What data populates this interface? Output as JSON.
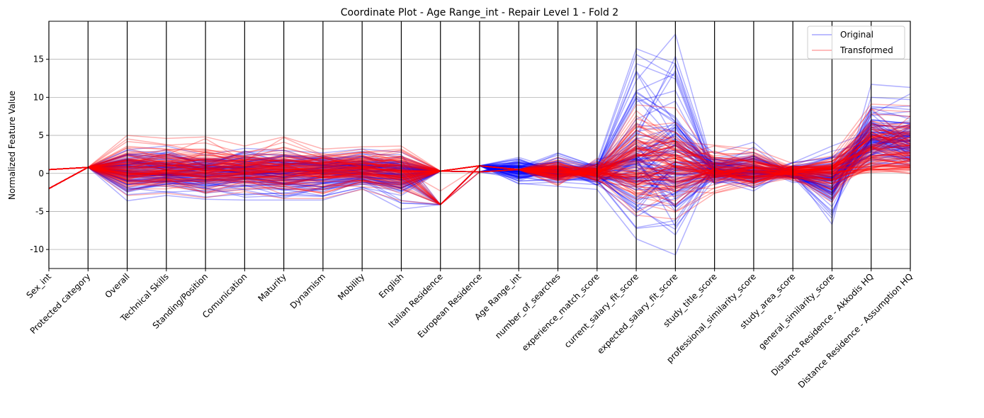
{
  "chart_data": {
    "type": "line",
    "title": "Coordinate Plot - Age Range_int - Repair Level 1 - Fold 2",
    "ylabel": "Normalized Feature Value",
    "xlabel": "",
    "ylim": [
      -12.5,
      20
    ],
    "yticks": [
      -10,
      -5,
      0,
      5,
      10,
      15
    ],
    "grid": "horizontal",
    "legend_position": "top-right",
    "categories": [
      "Sex_int",
      "Protected category",
      "Overall",
      "Technical Skills",
      "Standing/Position",
      "Comunication",
      "Maturity",
      "Dynamism",
      "Mobility",
      "English",
      "Italian Residence",
      "European Residence",
      "Age Range_int",
      "number_of_searches",
      "experience_match_score",
      "current_salary_fit_score",
      "expected_salary_fit_score",
      "study_title_score",
      "professional_similarity_score",
      "study_area_score",
      "general_similarity_score",
      "Distance Residence - Akkodis HQ",
      "Distance Residence - Assumption HQ"
    ],
    "series": [
      {
        "name": "Original",
        "color": "#0000ff",
        "lines": [
          [
            0.5,
            0.8,
            -3.6,
            -2.9,
            -3.4,
            -3.5,
            -3.5,
            -3.5,
            -2.0,
            -4.7,
            -4.1,
            1.0,
            1.9,
            0.2,
            1.5,
            16.4,
            14.4,
            -1.5,
            0.5,
            -0.5,
            -5.9,
            10.0,
            9.7
          ],
          [
            -2.0,
            0.8,
            1.0,
            0.5,
            0.3,
            0.1,
            0.7,
            0.4,
            0.2,
            0.6,
            0.3,
            1.0,
            -1.3,
            -1.7,
            -2.1,
            -8.6,
            -10.7,
            1.2,
            2.0,
            0.3,
            -6.7,
            11.7,
            11.3
          ],
          [
            0.5,
            0.8,
            2.4,
            1.8,
            2.0,
            1.5,
            2.2,
            1.7,
            1.9,
            1.1,
            0.3,
            0.2,
            0.8,
            2.7,
            0.9,
            12.2,
            18.3,
            0.2,
            -0.8,
            1.4,
            3.6,
            5.5,
            5.0
          ],
          [
            -2.0,
            0.8,
            -1.5,
            -1.0,
            -2.0,
            -0.8,
            -1.9,
            -1.3,
            -0.7,
            -2.3,
            0.3,
            1.0,
            0.3,
            -0.9,
            1.8,
            3.1,
            6.8,
            2.6,
            4.1,
            -0.2,
            -2.4,
            4.6,
            4.2
          ],
          [
            0.5,
            0.8,
            0.4,
            -0.3,
            1.1,
            0.6,
            -0.5,
            0.8,
            1.3,
            -0.4,
            0.3,
            1.0,
            -0.6,
            1.3,
            -1.5,
            2.0,
            -7.0,
            -0.8,
            -2.3,
            0.8,
            1.2,
            7.0,
            6.6
          ],
          [
            0.5,
            0.8,
            3.1,
            3.6,
            2.4,
            3.3,
            3.0,
            2.7,
            3.2,
            2.8,
            0.3,
            1.0,
            2.1,
            0.5,
            0.0,
            -5.1,
            1.4,
            1.9,
            1.1,
            -1.0,
            -1.4,
            6.4,
            6.1
          ],
          [
            -2.0,
            0.8,
            -2.8,
            -2.4,
            -3.1,
            -2.7,
            -2.6,
            -3.0,
            -1.8,
            -3.9,
            -4.1,
            1.0,
            1.5,
            -0.3,
            0.7,
            3.9,
            -3.4,
            -0.4,
            0.3,
            0.1,
            -3.2,
            8.8,
            8.4
          ],
          [
            0.5,
            0.8,
            1.7,
            1.2,
            0.8,
            2.1,
            1.4,
            2.2,
            0.6,
            1.7,
            0.3,
            1.0,
            -1.0,
            0.9,
            -0.7,
            -1.2,
            2.9,
            0.8,
            -1.1,
            1.0,
            0.6,
            1.8,
            1.6
          ]
        ]
      },
      {
        "name": "Transformed",
        "color": "#ff0000",
        "lines": [
          [
            0.5,
            0.8,
            5.0,
            4.6,
            4.8,
            3.6,
            4.8,
            3.2,
            3.5,
            3.6,
            0.3,
            1.0,
            0.5,
            0.0,
            0.5,
            6.3,
            4.2,
            3.7,
            3.2,
            1.3,
            2.3,
            9.1,
            8.9
          ],
          [
            -2.0,
            0.8,
            -2.9,
            -2.6,
            -3.2,
            -2.4,
            -3.3,
            -3.3,
            -2.1,
            -3.6,
            -4.1,
            1.0,
            0.5,
            1.0,
            -1.2,
            -5.5,
            -6.0,
            -2.6,
            -1.5,
            -0.6,
            -3.8,
            5.8,
            5.3
          ],
          [
            0.5,
            0.8,
            2.5,
            1.5,
            2.8,
            2.1,
            2.0,
            2.6,
            1.7,
            2.3,
            0.3,
            1.0,
            0.5,
            2.1,
            0.6,
            9.0,
            8.6,
            1.5,
            2.4,
            0.6,
            1.0,
            7.8,
            7.5
          ],
          [
            -2.0,
            0.8,
            0.3,
            -0.4,
            0.1,
            0.5,
            -0.6,
            0.2,
            0.9,
            0.1,
            0.3,
            1.0,
            0.5,
            -1.6,
            2.0,
            0.0,
            0.1,
            0.5,
            -0.4,
            0.1,
            -0.8,
            0.8,
            0.8
          ],
          [
            0.5,
            0.8,
            -1.6,
            -0.9,
            -1.8,
            -1.3,
            -1.5,
            -1.1,
            -1.0,
            -1.8,
            0.3,
            1.0,
            0.5,
            1.4,
            -1.0,
            4.5,
            2.3,
            -1.3,
            0.9,
            -0.9,
            -2.1,
            1.0,
            0.9
          ],
          [
            0.5,
            0.8,
            1.2,
            2.1,
            0.9,
            1.8,
            1.1,
            1.4,
            2.4,
            0.6,
            -2.3,
            1.0,
            0.5,
            -0.4,
            1.2,
            -3.0,
            -4.2,
            0.7,
            -1.9,
            1.1,
            1.6,
            6.5,
            6.0
          ],
          [
            -2.0,
            0.8,
            4.2,
            3.7,
            4.0,
            2.6,
            4.1,
            2.3,
            2.8,
            3.2,
            0.3,
            1.0,
            0.5,
            0.6,
            -0.3,
            7.2,
            5.4,
            2.1,
            1.7,
            0.4,
            1.9,
            8.4,
            8.1
          ],
          [
            0.5,
            0.8,
            -0.8,
            0.4,
            -0.5,
            -0.2,
            0.5,
            -0.6,
            0.0,
            -1.1,
            0.3,
            1.0,
            0.5,
            -1.0,
            0.2,
            -1.6,
            1.5,
            -0.2,
            0.4,
            -0.3,
            0.2,
            0.5,
            0.5
          ]
        ]
      }
    ]
  }
}
